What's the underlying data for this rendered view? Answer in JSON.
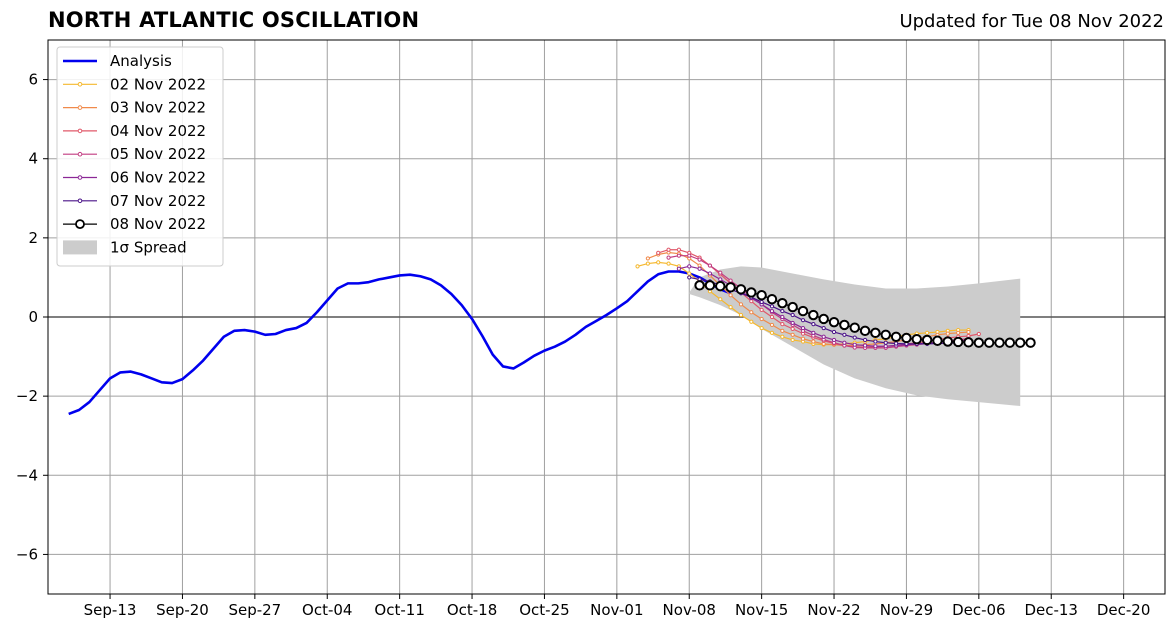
{
  "header": {
    "title": "NORTH ATLANTIC OSCILLATION",
    "updated": "Updated for Tue 08 Nov 2022"
  },
  "chart_data": {
    "type": "line",
    "title": "NORTH ATLANTIC OSCILLATION",
    "subtitle": "Updated for Tue 08 Nov 2022",
    "xlabel": "",
    "ylabel": "",
    "xlim": [
      "2022-09-07",
      "2022-12-24"
    ],
    "ylim": [
      -7,
      7
    ],
    "grid": true,
    "legend_position": "top-left",
    "x_ticks": [
      "Sep-13",
      "Sep-20",
      "Sep-27",
      "Oct-04",
      "Oct-11",
      "Oct-18",
      "Oct-25",
      "Nov-01",
      "Nov-08",
      "Nov-15",
      "Nov-22",
      "Nov-29",
      "Dec-06",
      "Dec-13",
      "Dec-20"
    ],
    "x_tick_dates": [
      "2022-09-13",
      "2022-09-20",
      "2022-09-27",
      "2022-10-04",
      "2022-10-11",
      "2022-10-18",
      "2022-10-25",
      "2022-11-01",
      "2022-11-08",
      "2022-11-15",
      "2022-11-22",
      "2022-11-29",
      "2022-12-06",
      "2022-12-13",
      "2022-12-20"
    ],
    "y_ticks": [
      6,
      4,
      2,
      0,
      -2,
      -4,
      -6
    ],
    "y_tick_labels": [
      "6",
      "4",
      "2",
      "0",
      "−2",
      "−4",
      "−6"
    ],
    "analysis": {
      "name": "Analysis",
      "color": "#0000ee",
      "start_date": "2022-09-09",
      "values": [
        -2.45,
        -2.35,
        -2.15,
        -1.85,
        -1.55,
        -1.4,
        -1.38,
        -1.45,
        -1.55,
        -1.65,
        -1.67,
        -1.57,
        -1.35,
        -1.1,
        -0.8,
        -0.5,
        -0.35,
        -0.33,
        -0.37,
        -0.45,
        -0.43,
        -0.33,
        -0.28,
        -0.15,
        0.12,
        0.42,
        0.72,
        0.85,
        0.85,
        0.88,
        0.95,
        1.0,
        1.05,
        1.07,
        1.03,
        0.95,
        0.8,
        0.58,
        0.3,
        -0.05,
        -0.48,
        -0.95,
        -1.25,
        -1.3,
        -1.15,
        -0.98,
        -0.85,
        -0.75,
        -0.62,
        -0.45,
        -0.25,
        -0.1,
        0.05,
        0.22,
        0.4,
        0.65,
        0.9,
        1.08,
        1.15,
        1.15,
        1.1,
        1.0,
        0.85,
        0.7,
        0.6
      ]
    },
    "forecasts": [
      {
        "name": "02 Nov 2022",
        "color": "#f5b82e",
        "start_date": "2022-11-03",
        "values": [
          1.28,
          1.35,
          1.38,
          1.35,
          1.28,
          1.1,
          0.9,
          0.65,
          0.45,
          0.25,
          0.05,
          -0.12,
          -0.28,
          -0.4,
          -0.5,
          -0.58,
          -0.62,
          -0.68,
          -0.7,
          -0.7,
          -0.68,
          -0.65,
          -0.62,
          -0.58,
          -0.55,
          -0.5,
          -0.45,
          -0.42,
          -0.4,
          -0.38,
          -0.35,
          -0.33,
          -0.33
        ]
      },
      {
        "name": "03 Nov 2022",
        "color": "#f08a4b",
        "start_date": "2022-11-04",
        "values": [
          1.48,
          1.58,
          1.63,
          1.6,
          1.48,
          1.3,
          1.05,
          0.8,
          0.55,
          0.32,
          0.12,
          -0.05,
          -0.2,
          -0.35,
          -0.45,
          -0.55,
          -0.62,
          -0.68,
          -0.7,
          -0.72,
          -0.72,
          -0.7,
          -0.68,
          -0.65,
          -0.62,
          -0.58,
          -0.55,
          -0.5,
          -0.45,
          -0.42,
          -0.4,
          -0.38
        ]
      },
      {
        "name": "04 Nov 2022",
        "color": "#e0586a",
        "start_date": "2022-11-05",
        "values": [
          1.62,
          1.7,
          1.7,
          1.62,
          1.5,
          1.3,
          1.08,
          0.85,
          0.62,
          0.4,
          0.18,
          0.0,
          -0.18,
          -0.3,
          -0.42,
          -0.52,
          -0.6,
          -0.67,
          -0.72,
          -0.75,
          -0.76,
          -0.76,
          -0.74,
          -0.72,
          -0.68,
          -0.65,
          -0.62,
          -0.58,
          -0.53,
          -0.5,
          -0.48,
          -0.43
        ]
      },
      {
        "name": "05 Nov 2022",
        "color": "#c23c81",
        "start_date": "2022-11-06",
        "values": [
          1.5,
          1.55,
          1.55,
          1.45,
          1.3,
          1.12,
          0.92,
          0.72,
          0.52,
          0.32,
          0.12,
          -0.05,
          -0.2,
          -0.35,
          -0.47,
          -0.57,
          -0.65,
          -0.72,
          -0.77,
          -0.78,
          -0.78,
          -0.78,
          -0.75,
          -0.72,
          -0.7,
          -0.67,
          -0.64,
          -0.6,
          -0.57,
          -0.55
        ]
      },
      {
        "name": "06 Nov 2022",
        "color": "#8c2796",
        "start_date": "2022-11-07",
        "values": [
          1.22,
          1.28,
          1.22,
          1.1,
          0.95,
          0.8,
          0.65,
          0.48,
          0.32,
          0.15,
          0.0,
          -0.15,
          -0.28,
          -0.4,
          -0.5,
          -0.58,
          -0.65,
          -0.7,
          -0.72,
          -0.74,
          -0.74,
          -0.72,
          -0.7,
          -0.68,
          -0.66,
          -0.64,
          -0.62,
          -0.6,
          -0.58
        ]
      },
      {
        "name": "07 Nov 2022",
        "color": "#4a1388",
        "start_date": "2022-11-08",
        "values": [
          1.0,
          0.95,
          0.9,
          0.8,
          0.7,
          0.6,
          0.5,
          0.38,
          0.27,
          0.15,
          0.05,
          -0.08,
          -0.18,
          -0.28,
          -0.38,
          -0.45,
          -0.52,
          -0.58,
          -0.62,
          -0.65,
          -0.67,
          -0.68,
          -0.68,
          -0.68,
          -0.67,
          -0.66,
          -0.65
        ]
      },
      {
        "name": "08 Nov 2022",
        "color": "#000000",
        "start_date": "2022-11-09",
        "values": [
          0.8,
          0.8,
          0.78,
          0.75,
          0.7,
          0.62,
          0.55,
          0.45,
          0.35,
          0.25,
          0.15,
          0.05,
          -0.05,
          -0.13,
          -0.2,
          -0.27,
          -0.35,
          -0.4,
          -0.45,
          -0.5,
          -0.53,
          -0.56,
          -0.58,
          -0.6,
          -0.62,
          -0.63,
          -0.64,
          -0.65,
          -0.65,
          -0.65,
          -0.65,
          -0.65,
          -0.65
        ]
      }
    ],
    "spread": {
      "name": "1σ Spread",
      "color": "#cccccc",
      "dates": [
        "2022-11-08",
        "2022-11-09",
        "2022-11-11",
        "2022-11-13",
        "2022-11-15",
        "2022-11-18",
        "2022-11-21",
        "2022-11-24",
        "2022-11-27",
        "2022-11-30",
        "2022-12-03",
        "2022-12-06",
        "2022-12-10"
      ],
      "upper": [
        0.62,
        1.0,
        1.2,
        1.28,
        1.25,
        1.1,
        0.95,
        0.82,
        0.72,
        0.72,
        0.77,
        0.85,
        0.97
      ],
      "lower": [
        0.58,
        0.5,
        0.3,
        0.05,
        -0.3,
        -0.75,
        -1.2,
        -1.55,
        -1.8,
        -1.98,
        -2.08,
        -2.15,
        -2.25
      ]
    }
  }
}
